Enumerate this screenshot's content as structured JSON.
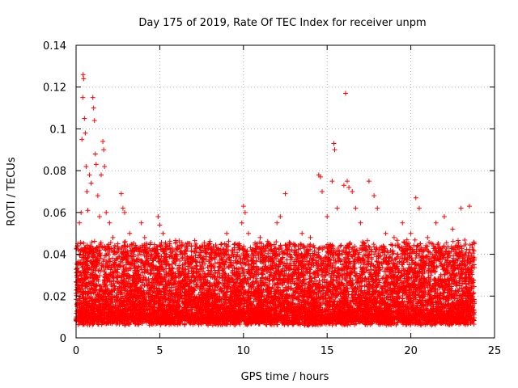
{
  "chart_data": {
    "type": "scatter",
    "title": "Day 175 of 2019, Rate Of TEC Index for receiver unpm",
    "xlabel": "GPS time / hours",
    "ylabel": "ROTI / TECUs",
    "xlim": [
      0,
      25
    ],
    "ylim": [
      0,
      0.14
    ],
    "x_ticks": [
      0,
      5,
      10,
      15,
      20,
      25
    ],
    "y_ticks": [
      0,
      0.02,
      0.04,
      0.06,
      0.08,
      0.1,
      0.12,
      0.14
    ],
    "x_tick_labels": [
      "0",
      "5",
      "10",
      "15",
      "20",
      "25"
    ],
    "y_tick_labels": [
      "0",
      "0.02",
      "0.04",
      "0.06",
      "0.08",
      "0.1",
      "0.12",
      "0.14"
    ],
    "grid": true,
    "marker": "+",
    "color": "#ff0000",
    "series": [
      {
        "name": "ROTI",
        "points": [
          [
            0.05,
            0.03
          ],
          [
            0.1,
            0.045
          ],
          [
            0.15,
            0.025
          ],
          [
            0.2,
            0.055
          ],
          [
            0.25,
            0.04
          ],
          [
            0.3,
            0.06
          ],
          [
            0.35,
            0.095
          ],
          [
            0.4,
            0.115
          ],
          [
            0.42,
            0.126
          ],
          [
            0.45,
            0.124
          ],
          [
            0.5,
            0.105
          ],
          [
            0.55,
            0.098
          ],
          [
            0.6,
            0.082
          ],
          [
            0.65,
            0.07
          ],
          [
            0.7,
            0.061
          ],
          [
            0.8,
            0.078
          ],
          [
            0.9,
            0.074
          ],
          [
            1.0,
            0.115
          ],
          [
            1.05,
            0.11
          ],
          [
            1.1,
            0.104
          ],
          [
            1.15,
            0.088
          ],
          [
            1.2,
            0.083
          ],
          [
            1.3,
            0.068
          ],
          [
            1.4,
            0.058
          ],
          [
            1.5,
            0.078
          ],
          [
            1.6,
            0.094
          ],
          [
            1.65,
            0.09
          ],
          [
            1.7,
            0.082
          ],
          [
            1.8,
            0.06
          ],
          [
            2.0,
            0.055
          ],
          [
            2.2,
            0.048
          ],
          [
            2.5,
            0.045
          ],
          [
            2.7,
            0.069
          ],
          [
            2.8,
            0.062
          ],
          [
            2.9,
            0.06
          ],
          [
            3.2,
            0.05
          ],
          [
            3.5,
            0.042
          ],
          [
            3.9,
            0.055
          ],
          [
            4.1,
            0.048
          ],
          [
            4.5,
            0.04
          ],
          [
            4.9,
            0.058
          ],
          [
            5.0,
            0.054
          ],
          [
            5.2,
            0.05
          ],
          [
            5.6,
            0.045
          ],
          [
            6.0,
            0.04
          ],
          [
            6.5,
            0.042
          ],
          [
            7.0,
            0.038
          ],
          [
            7.5,
            0.044
          ],
          [
            8.0,
            0.045
          ],
          [
            8.5,
            0.04
          ],
          [
            9.0,
            0.05
          ],
          [
            9.5,
            0.045
          ],
          [
            9.9,
            0.055
          ],
          [
            10.0,
            0.063
          ],
          [
            10.1,
            0.06
          ],
          [
            10.3,
            0.05
          ],
          [
            10.8,
            0.045
          ],
          [
            11.0,
            0.048
          ],
          [
            11.5,
            0.045
          ],
          [
            12.0,
            0.055
          ],
          [
            12.2,
            0.058
          ],
          [
            12.5,
            0.069
          ],
          [
            13.0,
            0.045
          ],
          [
            13.5,
            0.05
          ],
          [
            14.0,
            0.048
          ],
          [
            14.5,
            0.078
          ],
          [
            14.6,
            0.077
          ],
          [
            14.7,
            0.07
          ],
          [
            15.0,
            0.058
          ],
          [
            15.3,
            0.075
          ],
          [
            15.4,
            0.093
          ],
          [
            15.45,
            0.09
          ],
          [
            15.6,
            0.062
          ],
          [
            16.0,
            0.073
          ],
          [
            16.1,
            0.117
          ],
          [
            16.2,
            0.075
          ],
          [
            16.3,
            0.072
          ],
          [
            16.5,
            0.07
          ],
          [
            16.7,
            0.062
          ],
          [
            17.0,
            0.055
          ],
          [
            17.5,
            0.075
          ],
          [
            17.8,
            0.068
          ],
          [
            18.0,
            0.062
          ],
          [
            18.5,
            0.05
          ],
          [
            19.0,
            0.048
          ],
          [
            19.5,
            0.055
          ],
          [
            20.0,
            0.05
          ],
          [
            20.3,
            0.067
          ],
          [
            20.5,
            0.062
          ],
          [
            21.0,
            0.048
          ],
          [
            21.5,
            0.055
          ],
          [
            22.0,
            0.058
          ],
          [
            22.5,
            0.052
          ],
          [
            23.0,
            0.062
          ],
          [
            23.5,
            0.063
          ],
          [
            23.8,
            0.045
          ]
        ],
        "density_band": {
          "description": "dense cloud of measurements across the whole day",
          "x_range": [
            0,
            23.8
          ],
          "y_min": 0.005,
          "y_typical_low": 0.008,
          "y_typical_high": 0.045,
          "points_per_hour": 420
        }
      }
    ]
  }
}
